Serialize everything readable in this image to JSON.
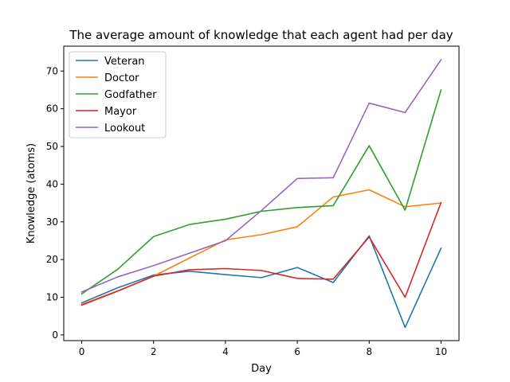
{
  "chart_data": {
    "type": "line",
    "title": "The average amount of knowledge that each agent had per day",
    "xlabel": "Day",
    "ylabel": "Knowledge (atoms)",
    "x": [
      0,
      1,
      2,
      3,
      4,
      5,
      6,
      7,
      8,
      9,
      10
    ],
    "xlim": [
      -0.5,
      10.5
    ],
    "ylim": [
      -1.5,
      76.6
    ],
    "xticks": [
      0,
      2,
      4,
      6,
      8,
      10
    ],
    "yticks": [
      0,
      10,
      20,
      30,
      40,
      50,
      60,
      70
    ],
    "grid": false,
    "legend_position": "top-left",
    "series": [
      {
        "name": "Veteran",
        "color": "#1f77b4",
        "values": [
          8.5,
          12.5,
          15.9,
          16.9,
          16.0,
          15.2,
          17.9,
          13.9,
          26.3,
          2.0,
          23.0
        ]
      },
      {
        "name": "Doctor",
        "color": "#ff7f0e",
        "values": [
          8.1,
          11.7,
          15.6,
          20.4,
          25.2,
          26.6,
          28.7,
          36.6,
          38.5,
          34.0,
          35.0
        ]
      },
      {
        "name": "Godfather",
        "color": "#2ca02c",
        "values": [
          10.9,
          17.4,
          26.1,
          29.3,
          30.7,
          32.8,
          33.8,
          34.3,
          50.2,
          33.1,
          65.0
        ]
      },
      {
        "name": "Mayor",
        "color": "#d62728",
        "values": [
          7.9,
          11.6,
          15.6,
          17.3,
          17.6,
          17.1,
          15.0,
          14.8,
          26.0,
          10.0,
          35.1
        ]
      },
      {
        "name": "Lookout",
        "color": "#9467bd",
        "values": [
          11.4,
          15.4,
          18.4,
          21.7,
          25.0,
          33.0,
          41.5,
          41.7,
          61.5,
          59.0,
          73.0
        ]
      }
    ]
  }
}
